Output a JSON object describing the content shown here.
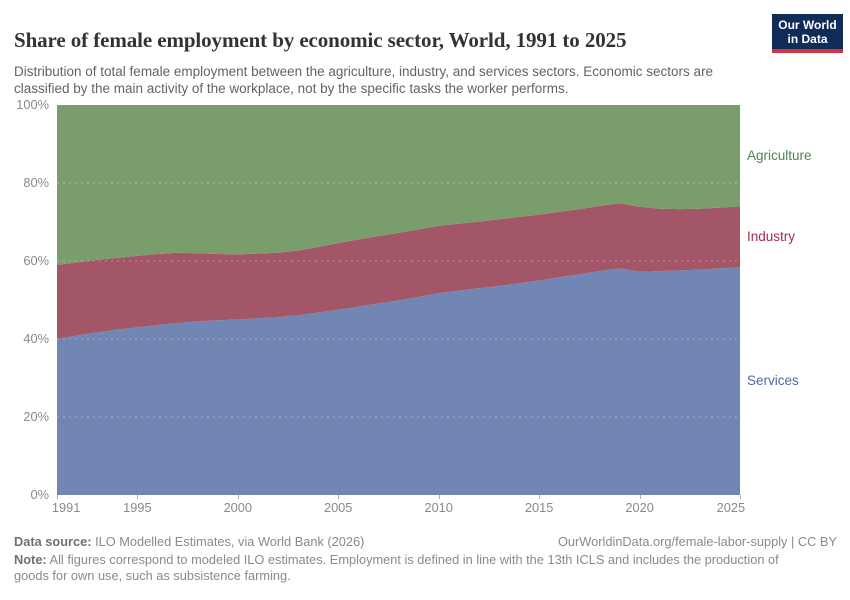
{
  "header": {
    "title": "Share of female employment by economic sector, World, 1991 to 2025",
    "subtitle": "Distribution of total female employment between the agriculture, industry, and services sectors. Economic sectors are classified by the main activity of the workplace, not by the specific tasks the worker performs.",
    "logo": {
      "line1": "Our World",
      "line2": "in Data",
      "bg_color": "#102d59",
      "accent_color": "#cf3545"
    }
  },
  "chart_data": {
    "type": "area",
    "stacked": true,
    "title": "Share of female employment by economic sector, World, 1991 to 2025",
    "xlabel": "",
    "ylabel": "",
    "ylim": [
      0,
      100
    ],
    "grid": "dashed horizontal at 20/40/60/80%",
    "legend_position": "right edge, labels beside bands",
    "x": [
      1991,
      1992,
      1993,
      1994,
      1995,
      1996,
      1997,
      1998,
      1999,
      2000,
      2001,
      2002,
      2003,
      2004,
      2005,
      2006,
      2007,
      2008,
      2009,
      2010,
      2011,
      2012,
      2013,
      2014,
      2015,
      2016,
      2017,
      2018,
      2019,
      2020,
      2021,
      2022,
      2023,
      2024,
      2025
    ],
    "x_ticks": [
      1991,
      1995,
      2000,
      2005,
      2010,
      2015,
      2020,
      2025
    ],
    "y_ticks": [
      "0%",
      "20%",
      "40%",
      "60%",
      "80%",
      "100%"
    ],
    "unit": "%",
    "series": [
      {
        "name": "Services",
        "color": "#7186b2",
        "label_color": "#4a69a8",
        "values": [
          40.0,
          40.9,
          41.7,
          42.4,
          43.0,
          43.6,
          44.1,
          44.5,
          44.8,
          45.0,
          45.3,
          45.6,
          46.1,
          46.8,
          47.5,
          48.3,
          49.1,
          49.9,
          50.8,
          51.7,
          52.4,
          53.0,
          53.6,
          54.3,
          55.0,
          55.8,
          56.6,
          57.4,
          58.1,
          57.2,
          57.4,
          57.6,
          57.8,
          58.1,
          58.4
        ]
      },
      {
        "name": "Industry",
        "color": "#a25668",
        "label_color": "#a22e4e",
        "values": [
          19.0,
          18.8,
          18.6,
          18.4,
          18.3,
          18.2,
          18.0,
          17.5,
          17.0,
          16.7,
          16.6,
          16.5,
          16.6,
          16.8,
          17.1,
          17.2,
          17.3,
          17.3,
          17.3,
          17.3,
          17.2,
          17.1,
          17.1,
          17.0,
          16.9,
          16.8,
          16.7,
          16.7,
          16.7,
          16.7,
          16.0,
          15.7,
          15.6,
          15.6,
          15.6
        ]
      },
      {
        "name": "Agriculture",
        "color": "#7a9e6b",
        "label_color": "#4e8452",
        "values": [
          41.0,
          40.3,
          39.7,
          39.2,
          38.7,
          38.2,
          37.9,
          38.0,
          38.2,
          38.3,
          38.1,
          37.9,
          37.3,
          36.4,
          35.4,
          34.5,
          33.6,
          32.8,
          31.9,
          31.0,
          30.4,
          29.9,
          29.3,
          28.7,
          28.1,
          27.4,
          26.7,
          25.9,
          25.2,
          26.1,
          26.6,
          26.7,
          26.6,
          26.3,
          26.0
        ]
      }
    ]
  },
  "footer": {
    "datasource_label": "Data source:",
    "datasource": " ILO Modelled Estimates, via World Bank (2026)",
    "link": "OurWorldinData.org/female-labor-supply | CC BY",
    "note_label": "Note:",
    "note": " All figures correspond to modeled ILO estimates. Employment is defined in line with the 13th ICLS and includes the production of goods for own use, such as subsistence farming."
  }
}
